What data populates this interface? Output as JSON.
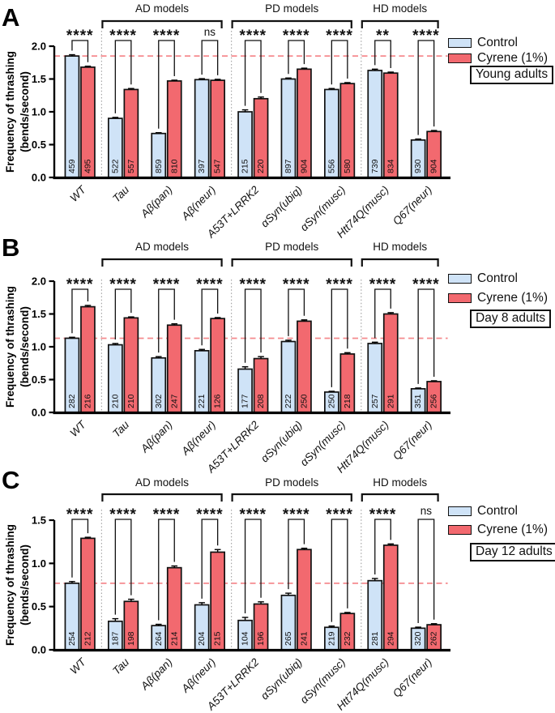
{
  "colors": {
    "control_fill": "#CFE3F7",
    "cyrene_fill": "#F2696F",
    "dashed_line": "#F58A8E",
    "separator": "#A6A6A6",
    "axis": "#000000",
    "bar_border": "#111111"
  },
  "chart_data": [
    {
      "type": "bar",
      "panel": "A",
      "period_label": "Young adults",
      "ylabel": [
        "Frequency of thrashing",
        "(bends/second)"
      ],
      "ylim": [
        0,
        2.0
      ],
      "yticks": [
        "0.0",
        "0.5",
        "1.0",
        "1.5",
        "2.0"
      ],
      "dashed_line_y": 1.85,
      "categories": [
        "WT",
        "Tau",
        "Aβ(pan)",
        "Aβ(neur)",
        "A53T+LRRK2",
        "αSyn(ubiq)",
        "αSyn(musc)",
        "Htt74Q(musc)",
        "Q67(neur)"
      ],
      "groups": [
        {
          "label": "AD models",
          "from": 1,
          "to": 3
        },
        {
          "label": "PD models",
          "from": 4,
          "to": 6
        },
        {
          "label": "HD models",
          "from": 7,
          "to": 8
        }
      ],
      "separators_after": [
        0,
        3,
        6
      ],
      "significance": [
        "****",
        "****",
        "****",
        "ns",
        "****",
        "****",
        "****",
        "**",
        "****"
      ],
      "series": [
        {
          "name": "Control",
          "values": [
            1.85,
            0.9,
            0.67,
            1.49,
            1.0,
            1.5,
            1.34,
            1.63,
            0.57
          ],
          "err": [
            0.02,
            0.015,
            0.012,
            0.015,
            0.03,
            0.015,
            0.015,
            0.02,
            0.015
          ],
          "n": [
            459,
            522,
            859,
            397,
            215,
            897,
            556,
            739,
            930
          ]
        },
        {
          "name": "Cyrene (1%)",
          "values": [
            1.68,
            1.34,
            1.47,
            1.48,
            1.2,
            1.65,
            1.43,
            1.59,
            0.7
          ],
          "err": [
            0.015,
            0.015,
            0.012,
            0.015,
            0.025,
            0.015,
            0.015,
            0.015,
            0.015
          ],
          "n": [
            495,
            557,
            810,
            547,
            220,
            904,
            580,
            834,
            904
          ]
        }
      ]
    },
    {
      "type": "bar",
      "panel": "B",
      "period_label": "Day 8 adults",
      "ylabel": [
        "Frequency of thrashing",
        "(bends/second)"
      ],
      "ylim": [
        0,
        2.0
      ],
      "yticks": [
        "0.0",
        "0.5",
        "1.0",
        "1.5",
        "2.0"
      ],
      "dashed_line_y": 1.13,
      "categories": [
        "WT",
        "Tau",
        "Aβ(pan)",
        "Aβ(neur)",
        "A53T+LRRK2",
        "αSyn(ubiq)",
        "αSyn(musc)",
        "Htt74Q(musc)",
        "Q67(neur)"
      ],
      "groups": [
        {
          "label": "AD models",
          "from": 1,
          "to": 3
        },
        {
          "label": "PD models",
          "from": 4,
          "to": 6
        },
        {
          "label": "HD models",
          "from": 7,
          "to": 8
        }
      ],
      "separators_after": [
        0,
        3,
        6
      ],
      "significance": [
        "****",
        "****",
        "****",
        "****",
        "****",
        "****",
        "****",
        "****",
        "****"
      ],
      "series": [
        {
          "name": "Control",
          "values": [
            1.13,
            1.03,
            0.83,
            0.94,
            0.66,
            1.08,
            0.31,
            1.05,
            0.36
          ],
          "err": [
            0.015,
            0.02,
            0.02,
            0.02,
            0.035,
            0.02,
            0.012,
            0.02,
            0.012
          ],
          "n": [
            282,
            210,
            302,
            221,
            177,
            222,
            250,
            257,
            351
          ]
        },
        {
          "name": "Cyrene (1%)",
          "values": [
            1.61,
            1.44,
            1.33,
            1.43,
            0.82,
            1.39,
            0.89,
            1.5,
            0.47
          ],
          "err": [
            0.02,
            0.015,
            0.02,
            0.015,
            0.03,
            0.02,
            0.02,
            0.02,
            0.012
          ],
          "n": [
            216,
            210,
            247,
            126,
            208,
            250,
            218,
            291,
            256
          ]
        }
      ]
    },
    {
      "type": "bar",
      "panel": "C",
      "period_label": "Day 12 adults",
      "ylabel": [
        "Frequency of thrashing",
        "(bends/second)"
      ],
      "ylim": [
        0,
        1.5
      ],
      "yticks": [
        "0.0",
        "0.5",
        "1.0",
        "1.5"
      ],
      "dashed_line_y": 0.77,
      "categories": [
        "WT",
        "Tau",
        "Aβ(pan)",
        "Aβ(neur)",
        "A53T+LRRK2",
        "αSyn(ubiq)",
        "αSyn(musc)",
        "Htt74Q(musc)",
        "Q67(neur)"
      ],
      "groups": [
        {
          "label": "AD models",
          "from": 1,
          "to": 3
        },
        {
          "label": "PD models",
          "from": 4,
          "to": 6
        },
        {
          "label": "HD models",
          "from": 7,
          "to": 8
        }
      ],
      "separators_after": [
        0,
        3,
        6
      ],
      "significance": [
        "****",
        "****",
        "****",
        "****",
        "****",
        "****",
        "****",
        "****",
        "ns"
      ],
      "series": [
        {
          "name": "Control",
          "values": [
            0.77,
            0.33,
            0.28,
            0.52,
            0.34,
            0.63,
            0.26,
            0.8,
            0.25
          ],
          "err": [
            0.02,
            0.03,
            0.015,
            0.025,
            0.035,
            0.025,
            0.015,
            0.025,
            0.012
          ],
          "n": [
            254,
            187,
            264,
            204,
            104,
            265,
            219,
            281,
            320
          ]
        },
        {
          "name": "Cyrene (1%)",
          "values": [
            1.29,
            0.56,
            0.95,
            1.13,
            0.53,
            1.16,
            0.42,
            1.21,
            0.29
          ],
          "err": [
            0.012,
            0.025,
            0.02,
            0.03,
            0.025,
            0.015,
            0.012,
            0.015,
            0.012
          ],
          "n": [
            212,
            198,
            214,
            215,
            196,
            241,
            232,
            294,
            262
          ]
        }
      ]
    }
  ]
}
